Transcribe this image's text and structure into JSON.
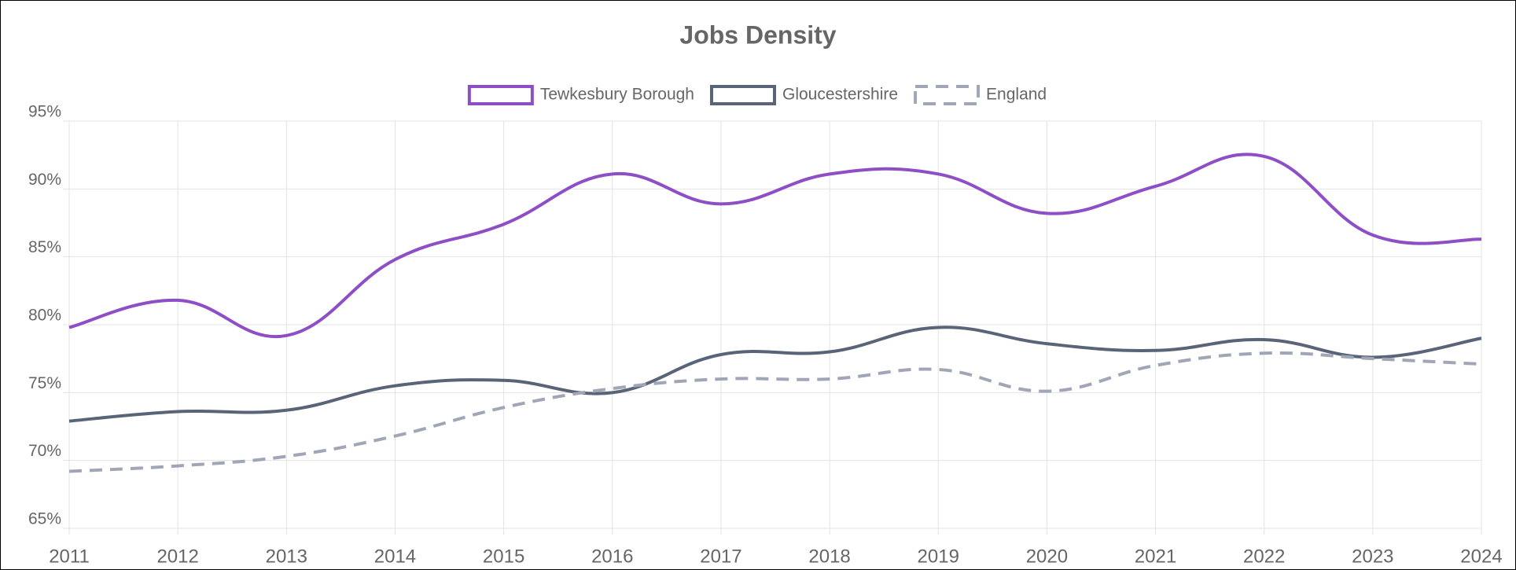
{
  "chart_data": {
    "type": "line",
    "title": "Jobs Density",
    "categories": [
      "2011",
      "2012",
      "2013",
      "2014",
      "2015",
      "2016",
      "2017",
      "2018",
      "2019",
      "2020",
      "2021",
      "2022",
      "2023",
      "2024"
    ],
    "series": [
      {
        "name": "Tewkesbury Borough",
        "color": "#8e4ec6",
        "dashed": false,
        "values": [
          79.8,
          81.8,
          79.2,
          84.8,
          87.4,
          91.1,
          88.9,
          91.1,
          91.1,
          88.2,
          90.2,
          92.4,
          86.6,
          86.3
        ]
      },
      {
        "name": "Gloucestershire",
        "color": "#5a6478",
        "dashed": false,
        "values": [
          72.9,
          73.6,
          73.7,
          75.5,
          75.9,
          75.0,
          77.8,
          78.0,
          79.8,
          78.6,
          78.1,
          78.9,
          77.6,
          79.0
        ]
      },
      {
        "name": "England",
        "color": "#a0a6b6",
        "dashed": true,
        "values": [
          69.2,
          69.6,
          70.3,
          71.8,
          73.9,
          75.3,
          76.0,
          76.0,
          76.7,
          75.1,
          77.0,
          77.9,
          77.5,
          77.1
        ]
      }
    ],
    "ylim": [
      65,
      95
    ],
    "yticks": [
      {
        "value": 65,
        "label": "65%"
      },
      {
        "value": 70,
        "label": "70%"
      },
      {
        "value": 75,
        "label": "75%"
      },
      {
        "value": 80,
        "label": "80%"
      },
      {
        "value": 85,
        "label": "85%"
      },
      {
        "value": 90,
        "label": "90%"
      },
      {
        "value": 95,
        "label": "95%"
      }
    ],
    "grid": true
  }
}
